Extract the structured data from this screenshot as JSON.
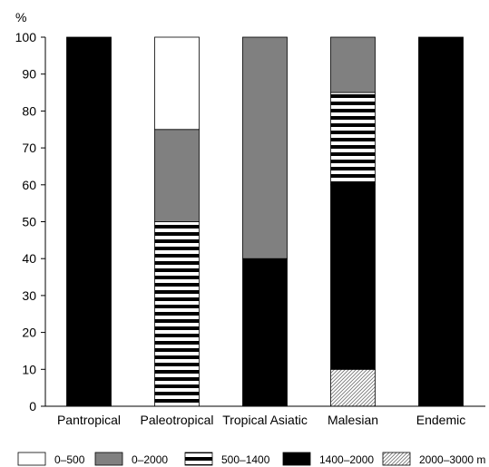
{
  "chart_data": {
    "type": "bar",
    "stacked": true,
    "y_unit_label": "%",
    "ylim": [
      0,
      100
    ],
    "y_ticks": [
      0,
      10,
      20,
      30,
      40,
      50,
      60,
      70,
      80,
      90,
      100
    ],
    "categories": [
      "Pantropical",
      "Paleotropical",
      "Tropical Asiatic",
      "Malesian",
      "Endemic"
    ],
    "series": [
      {
        "name": "2000–3000 m",
        "pattern": "diagonal",
        "color": "#ffffff",
        "values": [
          0,
          0,
          0,
          10,
          0
        ]
      },
      {
        "name": "1400–2000",
        "pattern": "solid",
        "color": "#000000",
        "values": [
          100,
          0,
          40,
          50,
          100
        ]
      },
      {
        "name": "500–1400",
        "pattern": "horizontal-stripes",
        "color": "#ffffff",
        "values": [
          0,
          50,
          0,
          25,
          0
        ]
      },
      {
        "name": "0–2000",
        "pattern": "solid",
        "color": "#808080",
        "values": [
          0,
          25,
          60,
          15,
          0
        ]
      },
      {
        "name": "0–500",
        "pattern": "solid",
        "color": "#ffffff",
        "values": [
          0,
          25,
          0,
          0,
          0
        ]
      }
    ],
    "legend_order": [
      "0–500",
      "0–2000",
      "500–1400",
      "1400–2000",
      "2000–3000 m"
    ],
    "legend_position": "bottom",
    "grid": false
  }
}
